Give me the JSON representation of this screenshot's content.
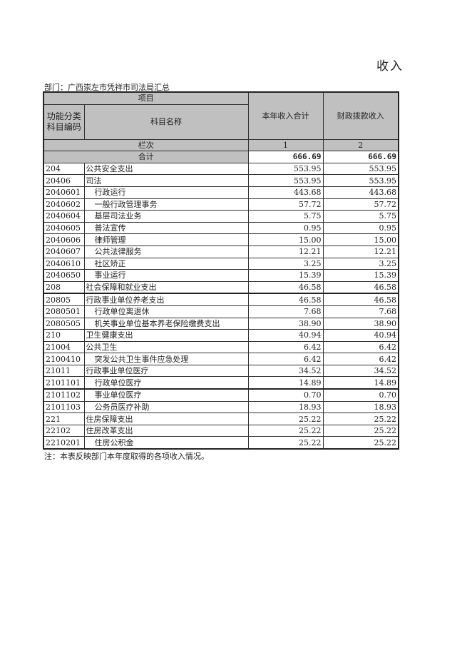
{
  "title": "收入",
  "department": "部门：广西崇左市凭祥市司法局汇总",
  "header": {
    "item": "项目",
    "code": "功能分类科目编码",
    "name": "科目名称",
    "col1": "本年收入合计",
    "col2": "财政拨款收入",
    "column_no_label": "栏次",
    "col1_no": "1",
    "col2_no": "2",
    "total_label": "合计",
    "total_col1": "666.69",
    "total_col2": "666.69"
  },
  "rows": [
    {
      "code": "204",
      "name": "公共安全支出",
      "level": 1,
      "v1": "553.95",
      "v2": "553.95"
    },
    {
      "code": "20406",
      "name": "司法",
      "level": 1,
      "v1": "553.95",
      "v2": "553.95"
    },
    {
      "code": "2040601",
      "name": "行政运行",
      "level": 2,
      "v1": "443.68",
      "v2": "443.68"
    },
    {
      "code": "2040602",
      "name": "一般行政管理事务",
      "level": 2,
      "v1": "57.72",
      "v2": "57.72"
    },
    {
      "code": "2040604",
      "name": "基层司法业务",
      "level": 2,
      "v1": "5.75",
      "v2": "5.75"
    },
    {
      "code": "2040605",
      "name": "普法宣传",
      "level": 2,
      "v1": "0.95",
      "v2": "0.95"
    },
    {
      "code": "2040606",
      "name": "律师管理",
      "level": 2,
      "v1": "15.00",
      "v2": "15.00"
    },
    {
      "code": "2040607",
      "name": "公共法律服务",
      "level": 2,
      "v1": "12.21",
      "v2": "12.21"
    },
    {
      "code": "2040610",
      "name": "社区矫正",
      "level": 2,
      "v1": "3.25",
      "v2": "3.25"
    },
    {
      "code": "2040650",
      "name": "事业运行",
      "level": 2,
      "v1": "15.39",
      "v2": "15.39"
    },
    {
      "code": "208",
      "name": "社会保障和就业支出",
      "level": 1,
      "v1": "46.58",
      "v2": "46.58"
    },
    {
      "code": "20805",
      "name": "行政事业单位养老支出",
      "level": 1,
      "v1": "46.58",
      "v2": "46.58"
    },
    {
      "code": "2080501",
      "name": "行政单位离退休",
      "level": 2,
      "v1": "7.68",
      "v2": "7.68"
    },
    {
      "code": "2080505",
      "name": "机关事业单位基本养老保险缴费支出",
      "level": 2,
      "v1": "38.90",
      "v2": "38.90"
    },
    {
      "code": "210",
      "name": "卫生健康支出",
      "level": 1,
      "v1": "40.94",
      "v2": "40.94"
    },
    {
      "code": "21004",
      "name": "公共卫生",
      "level": 1,
      "v1": "6.42",
      "v2": "6.42"
    },
    {
      "code": "2100410",
      "name": "突发公共卫生事件应急处理",
      "level": 2,
      "v1": "6.42",
      "v2": "6.42"
    },
    {
      "code": "21011",
      "name": "行政事业单位医疗",
      "level": 1,
      "v1": "34.52",
      "v2": "34.52"
    },
    {
      "code": "2101101",
      "name": "行政单位医疗",
      "level": 2,
      "v1": "14.89",
      "v2": "14.89"
    },
    {
      "code": "2101102",
      "name": "事业单位医疗",
      "level": 2,
      "v1": "0.70",
      "v2": "0.70"
    },
    {
      "code": "2101103",
      "name": "公务员医疗补助",
      "level": 2,
      "v1": "18.93",
      "v2": "18.93"
    },
    {
      "code": "221",
      "name": "住房保障支出",
      "level": 1,
      "v1": "25.22",
      "v2": "25.22"
    },
    {
      "code": "22102",
      "name": "住房改革支出",
      "level": 1,
      "v1": "25.22",
      "v2": "25.22"
    },
    {
      "code": "2210201",
      "name": "住房公积金",
      "level": 2,
      "v1": "25.22",
      "v2": "25.22"
    }
  ],
  "note": "注：本表反映部门本年度取得的各项收入情况。"
}
